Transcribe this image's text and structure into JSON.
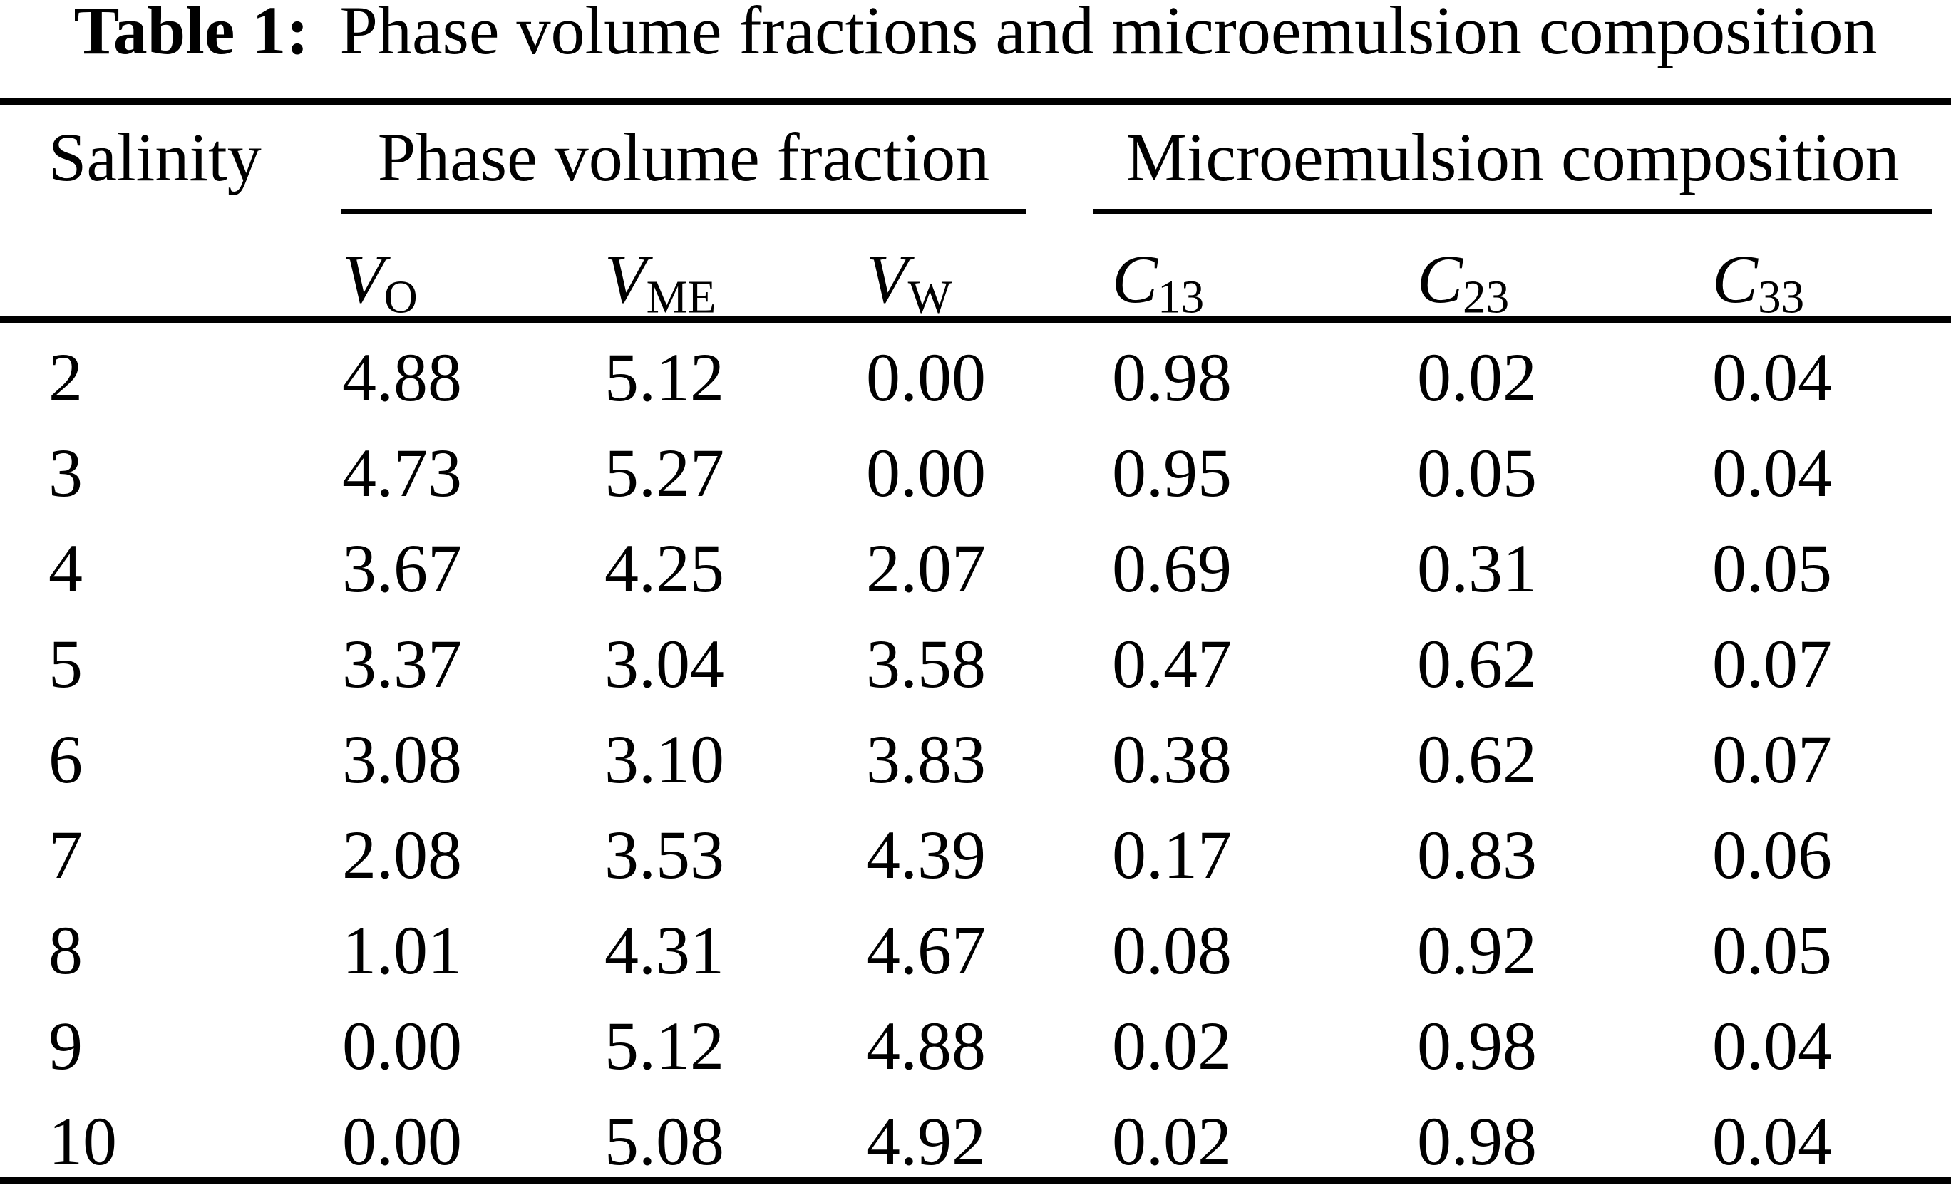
{
  "table": {
    "caption": {
      "label": "Table 1:",
      "text": "Phase volume fractions and microemulsion composition"
    },
    "row_header": "Salinity",
    "group_headers": {
      "phase": "Phase volume fraction",
      "micro": "Microemulsion composition"
    },
    "columns": [
      {
        "base": "V",
        "sub": "O"
      },
      {
        "base": "V",
        "sub": "ME"
      },
      {
        "base": "V",
        "sub": "W"
      },
      {
        "base": "C",
        "sub": "13"
      },
      {
        "base": "C",
        "sub": "23"
      },
      {
        "base": "C",
        "sub": "33"
      }
    ],
    "rows": [
      {
        "salinity": "2",
        "values": [
          "4.88",
          "5.12",
          "0.00",
          "0.98",
          "0.02",
          "0.04"
        ]
      },
      {
        "salinity": "3",
        "values": [
          "4.73",
          "5.27",
          "0.00",
          "0.95",
          "0.05",
          "0.04"
        ]
      },
      {
        "salinity": "4",
        "values": [
          "3.67",
          "4.25",
          "2.07",
          "0.69",
          "0.31",
          "0.05"
        ]
      },
      {
        "salinity": "5",
        "values": [
          "3.37",
          "3.04",
          "3.58",
          "0.47",
          "0.62",
          "0.07"
        ]
      },
      {
        "salinity": "6",
        "values": [
          "3.08",
          "3.10",
          "3.83",
          "0.38",
          "0.62",
          "0.07"
        ]
      },
      {
        "salinity": "7",
        "values": [
          "2.08",
          "3.53",
          "4.39",
          "0.17",
          "0.83",
          "0.06"
        ]
      },
      {
        "salinity": "8",
        "values": [
          "1.01",
          "4.31",
          "4.67",
          "0.08",
          "0.92",
          "0.05"
        ]
      },
      {
        "salinity": "9",
        "values": [
          "0.00",
          "5.12",
          "4.88",
          "0.02",
          "0.98",
          "0.04"
        ]
      },
      {
        "salinity": "10",
        "values": [
          "0.00",
          "5.08",
          "4.92",
          "0.02",
          "0.98",
          "0.04"
        ]
      }
    ],
    "colors": {
      "text": "#000000",
      "background": "#ffffff",
      "rule": "#000000"
    }
  }
}
